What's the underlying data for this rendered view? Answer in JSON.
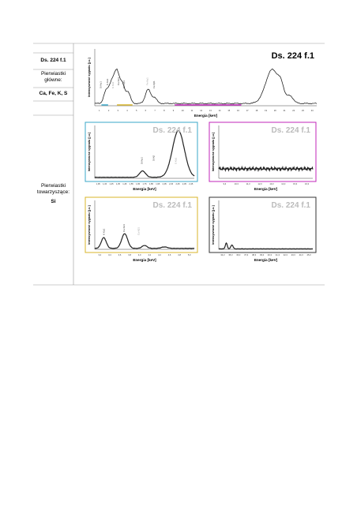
{
  "table": {
    "row1": {
      "sample": "Ds. 224 f.1",
      "category": "Pierwiastki główne:",
      "elements": "Ca, Fe, K, S"
    },
    "row2": {
      "category": "Pierwiastki towarzyszące:",
      "elements": "Si"
    }
  },
  "figures": [
    {
      "title": "Ds. 224 f.1",
      "x_label": "Energia [keV]",
      "y_label": "Intensywność sygnału [j.u.]",
      "xticks": [
        "1",
        "2",
        "3",
        "4",
        "5",
        "6",
        "7",
        "8",
        "9",
        "10",
        "11",
        "12",
        "13",
        "14",
        "15",
        "16",
        "17",
        "18",
        "19",
        "20",
        "21",
        "22",
        "23",
        "24"
      ],
      "peak_labels": [
        "Si Kα1",
        "S Kα1",
        "K Kα1",
        "Ca Kα1",
        "Ca Kβ1",
        "Fe Kα1",
        "Fe Kβ1"
      ]
    },
    {
      "title": "Ds. 224 f.1",
      "x_label": "Energia [keV]",
      "y_label": "Intensywność sygnału [j.u.]",
      "xticks": [
        "1,05",
        "1,15",
        "1,25",
        "1,35",
        "1,45",
        "1,55",
        "1,65",
        "1,75",
        "1,85",
        "1,95",
        "2,05",
        "2,15",
        "2,25",
        "2,35",
        "2,45"
      ],
      "peak_labels": [
        "Si Kα1",
        "Si Kβ",
        "S Kα1"
      ]
    },
    {
      "title": "Ds. 224 f.1",
      "x_label": "Energia [keV]",
      "y_label": "Intensywność sygnału [j.u.]",
      "xticks": [
        "9,3",
        "10,3",
        "11,3",
        "12,3",
        "13,3",
        "14,3",
        "15,3",
        "16,3"
      ],
      "peak_labels": []
    },
    {
      "title": "Ds. 224 f.1",
      "x_label": "Energia [keV]",
      "y_label": "Intensywność sygnału [j.u.]",
      "xticks": [
        "3,2",
        "3,4",
        "3,6",
        "3,8",
        "4,0",
        "4,2",
        "4,4",
        "4,6",
        "4,8",
        "5,0"
      ],
      "peak_labels": [
        "K Kα1",
        "Ca Kα1",
        "Ca Kβ1"
      ]
    },
    {
      "title": "Ds. 224 f.1",
      "x_label": "Energia [keV]",
      "y_label": "Intensywność sygnału [j.u.]",
      "xticks": [
        "34,3",
        "35,3",
        "36,3",
        "37,3",
        "38,3",
        "39,3",
        "40,3",
        "41,3",
        "42,3",
        "43,3",
        "44,3",
        "45,3"
      ],
      "peak_labels": []
    }
  ]
}
